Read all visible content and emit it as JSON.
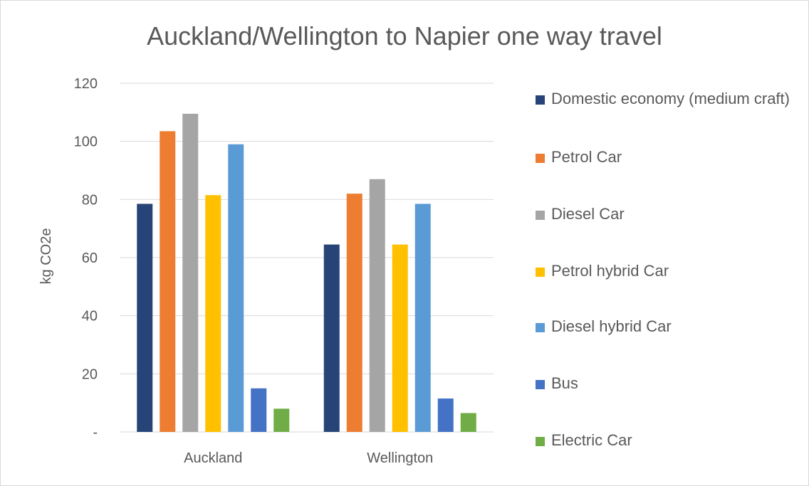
{
  "chart_data": {
    "type": "bar",
    "title": "Auckland/Wellington to Napier one way travel",
    "xlabel": "",
    "ylabel": "kg CO2e",
    "ylim": [
      0,
      120
    ],
    "yticks": [
      0,
      20,
      40,
      60,
      80,
      100,
      120
    ],
    "ytick_labels": [
      "-",
      "20",
      "40",
      "60",
      "80",
      "100",
      "120"
    ],
    "grid": true,
    "legend_position": "right",
    "categories": [
      "Auckland",
      "Wellington"
    ],
    "series": [
      {
        "name": "Domestic economy (medium craft)",
        "color": "#264478",
        "values": [
          78.5,
          64.5
        ]
      },
      {
        "name": "Petrol Car",
        "color": "#ED7D31",
        "values": [
          103.5,
          82
        ]
      },
      {
        "name": "Diesel Car",
        "color": "#A5A5A5",
        "values": [
          109.5,
          87
        ]
      },
      {
        "name": "Petrol hybrid Car",
        "color": "#FFC000",
        "values": [
          81.5,
          64.5
        ]
      },
      {
        "name": "Diesel hybrid Car",
        "color": "#5B9BD5",
        "values": [
          99,
          78.5
        ]
      },
      {
        "name": "Bus",
        "color": "#4472C4",
        "values": [
          15,
          11.5
        ]
      },
      {
        "name": "Electric Car",
        "color": "#70AD47",
        "values": [
          8,
          6.5
        ]
      }
    ]
  }
}
